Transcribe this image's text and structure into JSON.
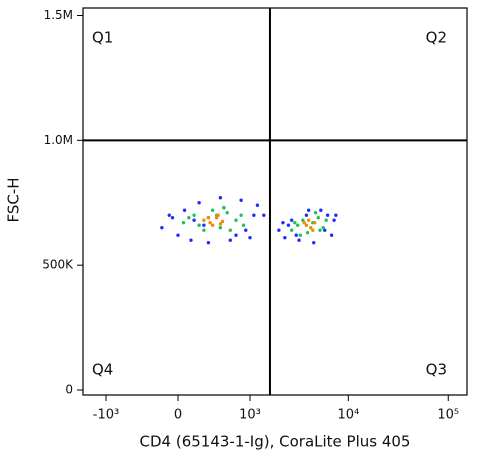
{
  "chart_data": {
    "type": "scatter",
    "xlabel": "CD4 (65143-1-Ig), CoraLite Plus 405",
    "ylabel": "FSC-H",
    "xscale": "asinh",
    "xlim": [
      -1740,
      154000
    ],
    "ylim": [
      -20000,
      1530000
    ],
    "xticks": [
      {
        "value": -1000,
        "label": "-10³"
      },
      0,
      {
        "value": 1000,
        "label": "10³"
      },
      {
        "value": 10000,
        "label": "10⁴"
      },
      {
        "value": 100000,
        "label": "10⁵"
      }
    ],
    "yticks": [
      0,
      {
        "value": 500000,
        "label": "500K"
      },
      {
        "value": 1000000,
        "label": "1.0M"
      },
      {
        "value": 1500000,
        "label": "1.5M"
      }
    ],
    "gates": {
      "x": 1620,
      "y": 1000000
    },
    "quadrants": [
      "Q1",
      "Q2",
      "Q3",
      "Q4"
    ],
    "series": [
      {
        "color": "#1f2cff",
        "x": [
          -150,
          -80,
          0,
          60,
          120,
          200,
          300,
          450,
          600,
          800,
          1000,
          1200,
          1400,
          900,
          500,
          150,
          -50,
          700,
          1100,
          250,
          2000,
          2300,
          2700,
          3200,
          3800,
          4500,
          5300,
          6200,
          7200,
          2500,
          3000,
          5800,
          6800,
          4000,
          2200,
          7500
        ],
        "y": [
          650000,
          700000,
          620000,
          720000,
          600000,
          750000,
          590000,
          770000,
          600000,
          760000,
          610000,
          740000,
          700000,
          640000,
          730000,
          680000,
          690000,
          620000,
          700000,
          660000,
          640000,
          610000,
          680000,
          600000,
          700000,
          590000,
          720000,
          700000,
          680000,
          660000,
          620000,
          640000,
          620000,
          720000,
          670000,
          700000
        ]
      },
      {
        "color": "#1ec25a",
        "x": [
          50,
          150,
          250,
          350,
          450,
          550,
          700,
          850,
          100,
          300,
          600,
          200,
          400,
          800,
          500,
          2700,
          3100,
          3500,
          3900,
          4400,
          5000,
          5600,
          6000,
          3300,
          4700,
          2900,
          5200
        ],
        "y": [
          670000,
          700000,
          640000,
          720000,
          650000,
          710000,
          680000,
          660000,
          690000,
          690000,
          640000,
          660000,
          700000,
          700000,
          730000,
          640000,
          660000,
          680000,
          630000,
          670000,
          690000,
          650000,
          680000,
          620000,
          710000,
          670000,
          640000
        ]
      },
      {
        "color": "#f08a00",
        "x": [
          250,
          320,
          400,
          480,
          350,
          420,
          300,
          450,
          3800,
          4200,
          4600,
          4000,
          4400,
          3600
        ],
        "y": [
          680000,
          670000,
          690000,
          675000,
          660000,
          700000,
          690000,
          665000,
          660000,
          650000,
          670000,
          680000,
          640000,
          670000
        ]
      }
    ]
  }
}
